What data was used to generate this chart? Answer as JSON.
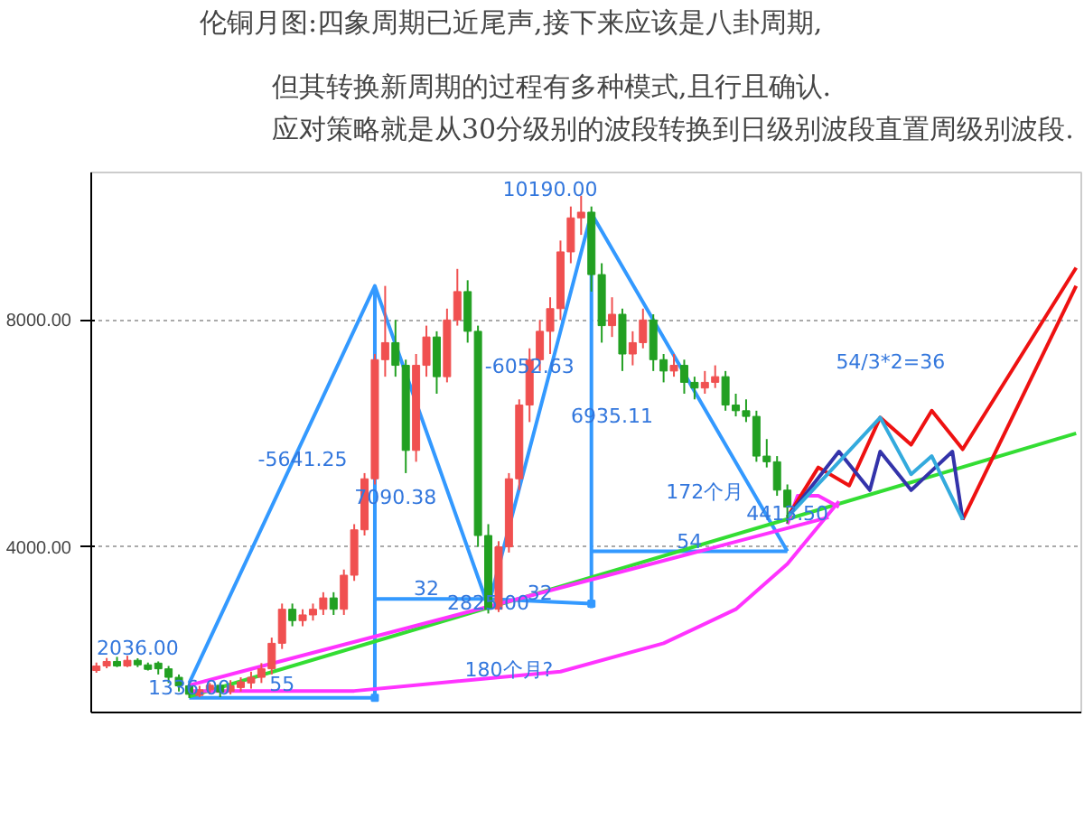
{
  "chart_data": {
    "type": "candlestick",
    "title": "伦铜月图:四象周期已近尾声,接下来应该是八卦周期,",
    "subtitle": "但其转换新周期的过程有多种模式,且行且确认.\n应对策略就是从30分级别的波段转换到日级别波段直置周级别波段.",
    "categories": [
      null,
      null,
      null,
      null,
      null,
      null,
      null,
      null,
      null,
      null,
      null,
      null,
      null,
      null,
      null,
      null,
      null,
      null,
      null,
      null,
      null,
      null,
      null,
      null,
      null,
      null,
      null,
      null,
      null,
      null,
      null,
      null,
      null,
      null,
      null,
      null,
      null,
      null,
      null,
      null,
      null,
      null,
      null,
      null,
      null,
      null,
      null,
      null,
      null,
      null,
      null,
      null,
      null,
      null,
      null,
      null,
      null,
      null,
      null,
      null,
      null,
      null,
      null,
      null,
      null,
      null,
      null,
      null,
      null,
      null,
      null,
      null,
      null,
      null,
      null,
      null,
      null,
      null,
      null,
      null,
      null,
      null,
      null,
      null,
      null,
      null,
      null,
      null,
      null,
      null,
      null,
      null,
      null,
      null,
      null,
      null
    ],
    "ohlc": [
      [
        1820,
        1960,
        1780,
        1900
      ],
      [
        1900,
        2040,
        1860,
        1980
      ],
      [
        1980,
        2060,
        1880,
        1900
      ],
      [
        1900,
        2080,
        1880,
        2000
      ],
      [
        2000,
        2036,
        1880,
        1920
      ],
      [
        1920,
        1960,
        1820,
        1840
      ],
      [
        1950,
        1980,
        1750,
        1850
      ],
      [
        1850,
        1900,
        1600,
        1700
      ],
      [
        1700,
        1750,
        1450,
        1550
      ],
      [
        1550,
        1600,
        1336,
        1400
      ],
      [
        1380,
        1550,
        1350,
        1480
      ],
      [
        1480,
        1600,
        1400,
        1560
      ],
      [
        1560,
        1600,
        1350,
        1440
      ],
      [
        1450,
        1650,
        1400,
        1550
      ],
      [
        1520,
        1700,
        1450,
        1620
      ],
      [
        1600,
        1800,
        1500,
        1700
      ],
      [
        1700,
        1950,
        1600,
        1850
      ],
      [
        1850,
        2400,
        1750,
        2300
      ],
      [
        2300,
        3000,
        2200,
        2900
      ],
      [
        2900,
        3000,
        2600,
        2700
      ],
      [
        2700,
        2900,
        2600,
        2800
      ],
      [
        2800,
        3000,
        2700,
        2900
      ],
      [
        2900,
        3200,
        2800,
        3100
      ],
      [
        3100,
        3200,
        2800,
        2900
      ],
      [
        2900,
        3600,
        2800,
        3500
      ],
      [
        3500,
        4400,
        3400,
        4300
      ],
      [
        4300,
        5300,
        4200,
        5200
      ],
      [
        5200,
        7400,
        5100,
        7300
      ],
      [
        7300,
        8600,
        7000,
        7600
      ],
      [
        7600,
        8000,
        7000,
        7200
      ],
      [
        7200,
        7300,
        5300,
        5700
      ],
      [
        5700,
        7400,
        5500,
        7200
      ],
      [
        7200,
        7900,
        7000,
        7700
      ],
      [
        7700,
        7800,
        6700,
        7000
      ],
      [
        7000,
        8200,
        6900,
        8000
      ],
      [
        8000,
        8900,
        7900,
        8500
      ],
      [
        8500,
        8700,
        7600,
        7800
      ],
      [
        7800,
        7900,
        4000,
        4200
      ],
      [
        4200,
        4400,
        2825,
        2900
      ],
      [
        2900,
        4100,
        2850,
        4000
      ],
      [
        4000,
        5300,
        3900,
        5200
      ],
      [
        5200,
        6600,
        5000,
        6500
      ],
      [
        6500,
        7500,
        6200,
        7300
      ],
      [
        7300,
        8000,
        7100,
        7800
      ],
      [
        7800,
        8400,
        7400,
        8200
      ],
      [
        8200,
        9400,
        8000,
        9200
      ],
      [
        9200,
        10000,
        9000,
        9800
      ],
      [
        9800,
        10190,
        9500,
        9900
      ],
      [
        9900,
        10000,
        8500,
        8800
      ],
      [
        8800,
        9000,
        7600,
        7900
      ],
      [
        7900,
        8400,
        7700,
        8100
      ],
      [
        8100,
        8200,
        7100,
        7400
      ],
      [
        7400,
        7800,
        7200,
        7600
      ],
      [
        7600,
        8200,
        7500,
        8000
      ],
      [
        8000,
        8100,
        7100,
        7300
      ],
      [
        7300,
        7400,
        6900,
        7100
      ],
      [
        7100,
        7400,
        7000,
        7200
      ],
      [
        7200,
        7300,
        6700,
        6900
      ],
      [
        6900,
        7000,
        6600,
        6800
      ],
      [
        6800,
        7100,
        6700,
        6900
      ],
      [
        6900,
        7200,
        6800,
        7000
      ],
      [
        7000,
        7100,
        6400,
        6500
      ],
      [
        6500,
        6700,
        6300,
        6400
      ],
      [
        6400,
        6600,
        6200,
        6300
      ],
      [
        6300,
        6400,
        5500,
        5600
      ],
      [
        5600,
        5900,
        5400,
        5500
      ],
      [
        5500,
        5600,
        4900,
        5000
      ],
      [
        5000,
        5100,
        4413.5,
        4700
      ],
      null,
      null,
      null,
      null,
      null,
      null,
      null,
      null,
      null,
      null,
      null,
      null,
      null,
      null,
      null,
      null,
      null,
      null,
      null,
      null,
      null,
      null,
      null,
      null,
      null,
      null,
      null,
      null
    ],
    "series": [
      {
        "type": "line",
        "color": "#3399ff",
        "values": [
          null,
          null,
          null,
          null,
          null,
          null,
          null,
          null,
          null,
          1600,
          null,
          null,
          null,
          null,
          null,
          null,
          null,
          null,
          null,
          null,
          null,
          null,
          null,
          null,
          null,
          null,
          null,
          8600,
          null,
          null,
          null,
          null,
          null,
          null,
          null,
          null,
          null,
          null,
          2950,
          null,
          null,
          null,
          null,
          null,
          null,
          null,
          null,
          null,
          9880,
          null,
          null,
          null,
          null,
          null,
          null,
          null,
          null,
          null,
          null,
          null,
          null,
          null,
          null,
          null,
          null,
          null,
          null,
          3920,
          null,
          null,
          null,
          null,
          null,
          null,
          null,
          null,
          null,
          null,
          null,
          null,
          null,
          null,
          null,
          null,
          null,
          null,
          null,
          null,
          null,
          null,
          null,
          null,
          null,
          null,
          null,
          null
        ]
      },
      {
        "type": "line",
        "color": "#3399ff",
        "values": [
          null,
          null,
          null,
          null,
          null,
          null,
          null,
          null,
          null,
          1340,
          null,
          null,
          null,
          null,
          null,
          null,
          null,
          null,
          null,
          null,
          null,
          null,
          null,
          null,
          null,
          null,
          null,
          1340,
          null,
          null,
          null,
          null,
          null,
          null,
          null,
          null,
          null,
          null,
          null,
          null,
          null,
          null,
          null,
          null,
          null,
          null,
          null,
          null,
          null,
          null,
          null,
          null,
          null,
          null,
          null,
          null,
          null,
          null,
          null,
          null,
          null,
          null,
          null,
          null,
          null,
          null,
          null,
          null,
          null,
          null,
          null,
          null,
          null,
          null,
          null,
          null,
          null,
          null,
          null,
          null,
          null,
          null,
          null,
          null,
          null,
          null,
          null,
          null,
          null,
          null,
          null,
          null,
          null,
          null,
          null,
          null
        ]
      },
      {
        "type": "line",
        "color": "#3399ff",
        "values": [
          null,
          null,
          null,
          null,
          null,
          null,
          null,
          null,
          null,
          null,
          null,
          null,
          null,
          null,
          null,
          null,
          null,
          null,
          null,
          null,
          null,
          null,
          null,
          null,
          null,
          null,
          null,
          3080,
          null,
          null,
          null,
          null,
          null,
          null,
          null,
          null,
          null,
          null,
          3080,
          null,
          null,
          null,
          null,
          null,
          null,
          null,
          null,
          null,
          3000,
          null,
          null,
          null,
          null,
          null,
          null,
          null,
          null,
          null,
          null,
          null,
          null,
          null,
          null,
          null,
          null,
          null,
          null,
          null,
          null,
          null,
          null,
          null,
          null,
          null,
          null,
          null,
          null,
          null,
          null,
          null,
          null,
          null,
          null,
          null,
          null,
          null,
          null,
          null,
          null,
          null,
          null,
          null,
          null,
          null,
          null,
          null
        ]
      },
      {
        "type": "line",
        "color": "#3399ff",
        "values": [
          null,
          null,
          null,
          null,
          null,
          null,
          null,
          null,
          null,
          null,
          null,
          null,
          null,
          null,
          null,
          null,
          null,
          null,
          null,
          null,
          null,
          null,
          null,
          null,
          null,
          null,
          null,
          null,
          null,
          null,
          null,
          null,
          null,
          null,
          null,
          null,
          null,
          null,
          null,
          null,
          null,
          null,
          null,
          null,
          null,
          null,
          null,
          null,
          3920,
          null,
          null,
          null,
          null,
          null,
          null,
          null,
          null,
          null,
          null,
          null,
          null,
          null,
          null,
          null,
          null,
          null,
          null,
          3920,
          null,
          null,
          null,
          null,
          null,
          null,
          null,
          null,
          null,
          null,
          null,
          null,
          null,
          null,
          null,
          null,
          null,
          null,
          null,
          null,
          null,
          null,
          null,
          null,
          null,
          null,
          null,
          null
        ]
      },
      {
        "type": "scatter",
        "marker": "square",
        "color": "#3399ff",
        "values": [
          null,
          null,
          null,
          null,
          null,
          null,
          null,
          null,
          null,
          null,
          null,
          null,
          null,
          null,
          null,
          null,
          null,
          null,
          null,
          null,
          null,
          null,
          null,
          null,
          null,
          null,
          null,
          1340,
          null,
          null,
          null,
          null,
          null,
          null,
          null,
          null,
          null,
          null,
          null,
          null,
          null,
          null,
          null,
          null,
          null,
          null,
          null,
          null,
          3000,
          null,
          null,
          null,
          null,
          null,
          null,
          null,
          null,
          null,
          null,
          null,
          null,
          null,
          null,
          null,
          null,
          null,
          null,
          null,
          null,
          null,
          null,
          null,
          null,
          null,
          null,
          null,
          null,
          null,
          null,
          null,
          null,
          null,
          null,
          null,
          null,
          null,
          null,
          null,
          null,
          null,
          null,
          null,
          null,
          null,
          null,
          null
        ],
        "errors": [
          null,
          null,
          null,
          null,
          null,
          null,
          null,
          null,
          null,
          null,
          null,
          null,
          null,
          null,
          null,
          null,
          null,
          null,
          null,
          null,
          null,
          null,
          null,
          null,
          null,
          null,
          null,
          [
            1340,
            8600
          ],
          null,
          null,
          null,
          null,
          null,
          null,
          null,
          null,
          null,
          null,
          null,
          null,
          null,
          null,
          null,
          null,
          null,
          null,
          null,
          null,
          [
            2920,
            9880
          ],
          null,
          null,
          null,
          null,
          null,
          null,
          null,
          null,
          null,
          null,
          null,
          null,
          null,
          null,
          null,
          null,
          null,
          null,
          null,
          null,
          null,
          null,
          null,
          null,
          null,
          null,
          null,
          null,
          null,
          null,
          null,
          null,
          null,
          null,
          null,
          null,
          null,
          null,
          null,
          null,
          null,
          null,
          null,
          null,
          null,
          null,
          null
        ]
      },
      {
        "type": "line",
        "color": "#33dd33",
        "values": [
          null,
          null,
          null,
          null,
          null,
          null,
          null,
          null,
          null,
          1360,
          null,
          null,
          null,
          null,
          null,
          null,
          null,
          null,
          null,
          null,
          null,
          null,
          null,
          null,
          null,
          null,
          null,
          null,
          null,
          null,
          null,
          null,
          null,
          null,
          null,
          null,
          null,
          null,
          null,
          null,
          null,
          null,
          null,
          null,
          null,
          null,
          null,
          null,
          null,
          null,
          null,
          null,
          null,
          null,
          null,
          null,
          null,
          null,
          null,
          null,
          null,
          null,
          null,
          null,
          null,
          null,
          null,
          null,
          null,
          null,
          null,
          null,
          null,
          null,
          null,
          null,
          null,
          null,
          null,
          null,
          null,
          null,
          null,
          null,
          null,
          null,
          null,
          null,
          null,
          null,
          null,
          null,
          null,
          null,
          null,
          6000
        ]
      },
      {
        "type": "line",
        "color": "#ff33ff",
        "values": [
          null,
          null,
          null,
          null,
          null,
          null,
          null,
          null,
          null,
          1560,
          null,
          null,
          null,
          null,
          null,
          null,
          null,
          null,
          null,
          null,
          null,
          null,
          null,
          null,
          null,
          null,
          null,
          null,
          null,
          null,
          null,
          null,
          null,
          null,
          null,
          null,
          null,
          null,
          null,
          null,
          null,
          null,
          null,
          null,
          null,
          null,
          null,
          null,
          null,
          null,
          null,
          null,
          null,
          null,
          null,
          null,
          null,
          null,
          null,
          null,
          null,
          null,
          null,
          null,
          null,
          null,
          null,
          null,
          null,
          null,
          null,
          4520,
          null,
          null,
          null,
          null,
          null,
          null,
          null,
          null,
          null,
          null,
          null,
          null,
          null,
          null,
          null,
          null,
          null,
          null,
          null,
          null,
          null,
          null,
          null,
          null
        ]
      },
      {
        "type": "line",
        "color": "#ff33ff",
        "values": [
          null,
          null,
          null,
          null,
          null,
          null,
          null,
          null,
          null,
          1460,
          null,
          null,
          null,
          null,
          null,
          null,
          null,
          null,
          null,
          null,
          null,
          null,
          null,
          null,
          null,
          1460,
          null,
          null,
          null,
          null,
          null,
          null,
          null,
          null,
          null,
          null,
          null,
          null,
          null,
          null,
          null,
          null,
          null,
          null,
          null,
          1800,
          null,
          null,
          null,
          null,
          null,
          null,
          null,
          null,
          null,
          2300,
          null,
          null,
          null,
          null,
          null,
          null,
          2900,
          null,
          null,
          null,
          null,
          3700,
          null,
          null,
          null,
          null,
          4800,
          null,
          null,
          null,
          null,
          null,
          null,
          null,
          null,
          null,
          null,
          null,
          null,
          null,
          null,
          null,
          null,
          null,
          null,
          null,
          null,
          null,
          null,
          null
        ]
      },
      {
        "type": "line",
        "color": "#ff33ff",
        "values": [
          null,
          null,
          null,
          null,
          null,
          null,
          null,
          null,
          null,
          null,
          null,
          null,
          null,
          null,
          null,
          null,
          null,
          null,
          null,
          null,
          null,
          null,
          null,
          null,
          null,
          null,
          null,
          null,
          null,
          null,
          null,
          null,
          null,
          null,
          null,
          null,
          null,
          null,
          null,
          null,
          null,
          null,
          null,
          null,
          null,
          null,
          null,
          null,
          null,
          null,
          null,
          null,
          null,
          null,
          null,
          null,
          null,
          null,
          null,
          null,
          null,
          null,
          null,
          null,
          null,
          null,
          null,
          4400,
          4900,
          null,
          4900,
          null,
          4700,
          null,
          null,
          null,
          null,
          null,
          null,
          null,
          null,
          null,
          null,
          null,
          null,
          null,
          null,
          null,
          null,
          null,
          null,
          null,
          null,
          null,
          null,
          null
        ]
      },
      {
        "type": "line",
        "color": "#ee1111",
        "values": [
          null,
          null,
          null,
          null,
          null,
          null,
          null,
          null,
          null,
          null,
          null,
          null,
          null,
          null,
          null,
          null,
          null,
          null,
          null,
          null,
          null,
          null,
          null,
          null,
          null,
          null,
          null,
          null,
          null,
          null,
          null,
          null,
          null,
          null,
          null,
          null,
          null,
          null,
          null,
          null,
          null,
          null,
          null,
          null,
          null,
          null,
          null,
          null,
          null,
          null,
          null,
          null,
          null,
          null,
          null,
          null,
          null,
          null,
          null,
          null,
          null,
          null,
          null,
          null,
          null,
          null,
          null,
          4520,
          null,
          null,
          5400,
          null,
          null,
          5080,
          null,
          null,
          6280,
          null,
          null,
          5800,
          null,
          6400,
          null,
          null,
          5720,
          null,
          null,
          null,
          null,
          null,
          null,
          null,
          null,
          null,
          null,
          8920
        ]
      },
      {
        "type": "line",
        "color": "#ee1111",
        "values": [
          null,
          null,
          null,
          null,
          null,
          null,
          null,
          null,
          null,
          null,
          null,
          null,
          null,
          null,
          null,
          null,
          null,
          null,
          null,
          null,
          null,
          null,
          null,
          null,
          null,
          null,
          null,
          null,
          null,
          null,
          null,
          null,
          null,
          null,
          null,
          null,
          null,
          null,
          null,
          null,
          null,
          null,
          null,
          null,
          null,
          null,
          null,
          null,
          null,
          null,
          null,
          null,
          null,
          null,
          null,
          null,
          null,
          null,
          null,
          null,
          null,
          null,
          null,
          null,
          null,
          null,
          null,
          null,
          null,
          null,
          null,
          null,
          null,
          null,
          null,
          null,
          null,
          null,
          null,
          null,
          null,
          null,
          null,
          null,
          4480,
          null,
          null,
          null,
          null,
          null,
          null,
          null,
          null,
          null,
          null,
          8600
        ]
      },
      {
        "type": "line",
        "color": "#3333aa",
        "values": [
          null,
          null,
          null,
          null,
          null,
          null,
          null,
          null,
          null,
          null,
          null,
          null,
          null,
          null,
          null,
          null,
          null,
          null,
          null,
          null,
          null,
          null,
          null,
          null,
          null,
          null,
          null,
          null,
          null,
          null,
          null,
          null,
          null,
          null,
          null,
          null,
          null,
          null,
          null,
          null,
          null,
          null,
          null,
          null,
          null,
          null,
          null,
          null,
          null,
          null,
          null,
          null,
          null,
          null,
          null,
          null,
          null,
          null,
          null,
          null,
          null,
          null,
          null,
          null,
          null,
          null,
          null,
          4520,
          null,
          null,
          null,
          null,
          5680,
          null,
          null,
          5000,
          5680,
          null,
          null,
          5000,
          null,
          null,
          null,
          5680,
          4480,
          null,
          null,
          null,
          null,
          null,
          null,
          null,
          null,
          null,
          null,
          null
        ]
      },
      {
        "type": "line",
        "color": "#33aadd",
        "values": [
          null,
          null,
          null,
          null,
          null,
          null,
          null,
          null,
          null,
          null,
          null,
          null,
          null,
          null,
          null,
          null,
          null,
          null,
          null,
          null,
          null,
          null,
          null,
          null,
          null,
          null,
          null,
          null,
          null,
          null,
          null,
          null,
          null,
          null,
          null,
          null,
          null,
          null,
          null,
          null,
          null,
          null,
          null,
          null,
          null,
          null,
          null,
          null,
          null,
          null,
          null,
          null,
          null,
          null,
          null,
          null,
          null,
          null,
          null,
          null,
          null,
          null,
          null,
          null,
          null,
          null,
          null,
          4520,
          null,
          null,
          null,
          null,
          null,
          null,
          null,
          null,
          6280,
          null,
          null,
          5280,
          null,
          5600,
          null,
          null,
          4480,
          null,
          null,
          null,
          null,
          null,
          null,
          null,
          null,
          null,
          null,
          null
        ]
      }
    ],
    "annotations": [
      {
        "text": "2036.00",
        "y": 2036
      },
      {
        "text": "1336.00",
        "y": 1336
      },
      "10190.00",
      {
        "text": "2825.00",
        "y": 2825
      },
      {
        "text": "4413.50",
        "y": 4413.5
      },
      "-5641.25",
      "7090.38",
      {
        "text": "-6052.63",
        "y": 7000
      },
      "6935.11",
      {
        "text": "55",
        "y": 1400
      },
      {
        "text": "32",
        "y": 3080
      },
      {
        "text": "32",
        "y": 3000
      },
      {
        "text": "54",
        "y": 3920
      },
      "172个月",
      "180个月?",
      "54/3*2=36"
    ],
    "ylim": [
      1080,
      10600
    ],
    "yticks": [
      {
        "value": 4000,
        "label": "4000.00"
      },
      {
        "value": 8000,
        "label": "8000.00"
      }
    ],
    "grid": "y",
    "tick_labels": "y"
  }
}
